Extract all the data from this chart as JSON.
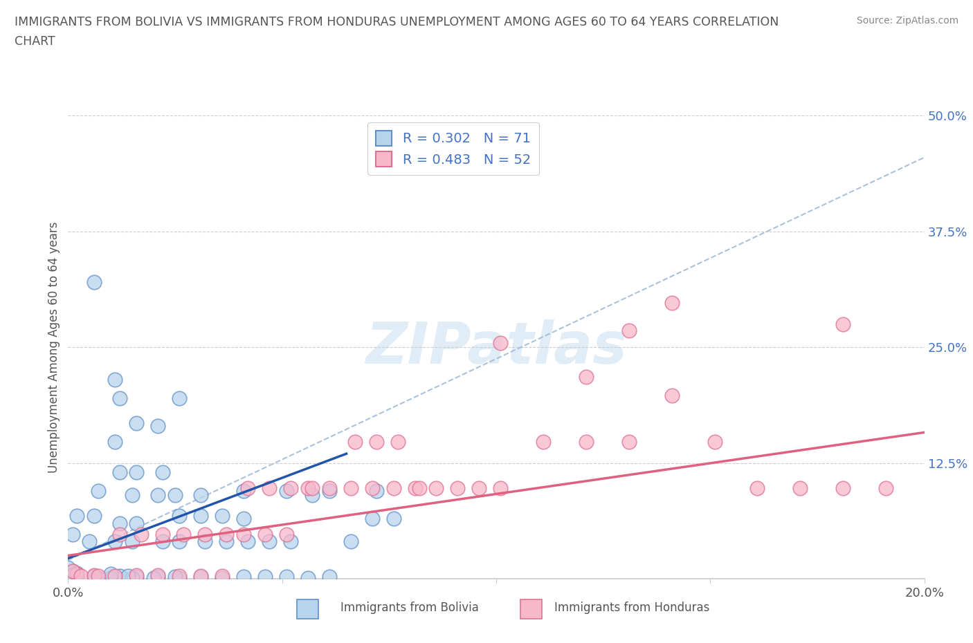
{
  "title_line1": "IMMIGRANTS FROM BOLIVIA VS IMMIGRANTS FROM HONDURAS UNEMPLOYMENT AMONG AGES 60 TO 64 YEARS CORRELATION",
  "title_line2": "CHART",
  "source": "Source: ZipAtlas.com",
  "ylabel": "Unemployment Among Ages 60 to 64 years",
  "xlim": [
    0.0,
    0.2
  ],
  "ylim": [
    0.0,
    0.5
  ],
  "xticks": [
    0.0,
    0.05,
    0.1,
    0.15,
    0.2
  ],
  "yticks": [
    0.0,
    0.125,
    0.25,
    0.375,
    0.5
  ],
  "xticklabels": [
    "0.0%",
    "",
    "",
    "",
    "20.0%"
  ],
  "yticklabels": [
    "",
    "12.5%",
    "25.0%",
    "37.5%",
    "50.0%"
  ],
  "bolivia_face_color": "#b8d4ec",
  "bolivia_edge_color": "#6090c8",
  "honduras_face_color": "#f8b8cc",
  "honduras_edge_color": "#e07090",
  "bolivia_line_color": "#2255aa",
  "honduras_line_color": "#e06080",
  "dashed_line_color": "#a0bcd8",
  "R_bolivia": 0.302,
  "N_bolivia": 71,
  "R_honduras": 0.483,
  "N_honduras": 52,
  "watermark": "ZIPatlas",
  "bolivia_scatter": [
    [
      0.001,
      0.005
    ],
    [
      0.001,
      0.008
    ],
    [
      0.002,
      0.002
    ],
    [
      0.0,
      0.003
    ],
    [
      0.001,
      0.001
    ],
    [
      0.0,
      0.012
    ],
    [
      0.002,
      0.006
    ],
    [
      0.001,
      0.004
    ],
    [
      0.006,
      0.002
    ],
    [
      0.007,
      0.001
    ],
    [
      0.005,
      0.04
    ],
    [
      0.006,
      0.003
    ],
    [
      0.011,
      0.002
    ],
    [
      0.012,
      0.003
    ],
    [
      0.01,
      0.001
    ],
    [
      0.011,
      0.04
    ],
    [
      0.012,
      0.06
    ],
    [
      0.01,
      0.005
    ],
    [
      0.016,
      0.002
    ],
    [
      0.015,
      0.001
    ],
    [
      0.014,
      0.003
    ],
    [
      0.015,
      0.04
    ],
    [
      0.016,
      0.06
    ],
    [
      0.015,
      0.09
    ],
    [
      0.021,
      0.002
    ],
    [
      0.02,
      0.001
    ],
    [
      0.022,
      0.04
    ],
    [
      0.021,
      0.09
    ],
    [
      0.026,
      0.001
    ],
    [
      0.025,
      0.002
    ],
    [
      0.026,
      0.04
    ],
    [
      0.025,
      0.09
    ],
    [
      0.031,
      0.002
    ],
    [
      0.032,
      0.04
    ],
    [
      0.031,
      0.09
    ],
    [
      0.036,
      0.001
    ],
    [
      0.037,
      0.04
    ],
    [
      0.041,
      0.002
    ],
    [
      0.042,
      0.04
    ],
    [
      0.041,
      0.065
    ],
    [
      0.046,
      0.002
    ],
    [
      0.047,
      0.04
    ],
    [
      0.051,
      0.002
    ],
    [
      0.052,
      0.04
    ],
    [
      0.056,
      0.001
    ],
    [
      0.057,
      0.09
    ],
    [
      0.061,
      0.002
    ],
    [
      0.066,
      0.04
    ],
    [
      0.071,
      0.065
    ],
    [
      0.076,
      0.065
    ],
    [
      0.012,
      0.195
    ],
    [
      0.011,
      0.215
    ],
    [
      0.016,
      0.168
    ],
    [
      0.021,
      0.165
    ],
    [
      0.026,
      0.195
    ],
    [
      0.006,
      0.32
    ],
    [
      0.001,
      0.048
    ],
    [
      0.002,
      0.068
    ],
    [
      0.006,
      0.068
    ],
    [
      0.007,
      0.095
    ],
    [
      0.012,
      0.115
    ],
    [
      0.011,
      0.148
    ],
    [
      0.016,
      0.115
    ],
    [
      0.022,
      0.115
    ],
    [
      0.026,
      0.068
    ],
    [
      0.031,
      0.068
    ],
    [
      0.036,
      0.068
    ],
    [
      0.041,
      0.095
    ],
    [
      0.051,
      0.095
    ],
    [
      0.061,
      0.095
    ],
    [
      0.072,
      0.095
    ]
  ],
  "honduras_scatter": [
    [
      0.002,
      0.005
    ],
    [
      0.001,
      0.008
    ],
    [
      0.003,
      0.003
    ],
    [
      0.006,
      0.004
    ],
    [
      0.007,
      0.003
    ],
    [
      0.011,
      0.003
    ],
    [
      0.012,
      0.048
    ],
    [
      0.016,
      0.004
    ],
    [
      0.017,
      0.048
    ],
    [
      0.021,
      0.004
    ],
    [
      0.022,
      0.048
    ],
    [
      0.026,
      0.003
    ],
    [
      0.027,
      0.048
    ],
    [
      0.031,
      0.003
    ],
    [
      0.032,
      0.048
    ],
    [
      0.036,
      0.003
    ],
    [
      0.037,
      0.048
    ],
    [
      0.041,
      0.048
    ],
    [
      0.042,
      0.098
    ],
    [
      0.046,
      0.048
    ],
    [
      0.047,
      0.098
    ],
    [
      0.051,
      0.048
    ],
    [
      0.052,
      0.098
    ],
    [
      0.056,
      0.098
    ],
    [
      0.057,
      0.098
    ],
    [
      0.061,
      0.098
    ],
    [
      0.066,
      0.098
    ],
    [
      0.067,
      0.148
    ],
    [
      0.071,
      0.098
    ],
    [
      0.072,
      0.148
    ],
    [
      0.076,
      0.098
    ],
    [
      0.077,
      0.148
    ],
    [
      0.081,
      0.098
    ],
    [
      0.082,
      0.098
    ],
    [
      0.086,
      0.098
    ],
    [
      0.091,
      0.098
    ],
    [
      0.096,
      0.098
    ],
    [
      0.101,
      0.098
    ],
    [
      0.111,
      0.148
    ],
    [
      0.121,
      0.148
    ],
    [
      0.131,
      0.148
    ],
    [
      0.141,
      0.198
    ],
    [
      0.151,
      0.148
    ],
    [
      0.161,
      0.098
    ],
    [
      0.171,
      0.098
    ],
    [
      0.181,
      0.098
    ],
    [
      0.191,
      0.098
    ],
    [
      0.101,
      0.255
    ],
    [
      0.121,
      0.218
    ],
    [
      0.141,
      0.298
    ],
    [
      0.131,
      0.268
    ],
    [
      0.181,
      0.275
    ]
  ],
  "bolivia_trend_x": [
    0.0,
    0.065
  ],
  "bolivia_trend_y": [
    0.022,
    0.135
  ],
  "honduras_trend_x": [
    0.0,
    0.2
  ],
  "honduras_trend_y": [
    0.025,
    0.158
  ],
  "dashed_trend_x": [
    0.0,
    0.2
  ],
  "dashed_trend_y": [
    0.02,
    0.455
  ]
}
